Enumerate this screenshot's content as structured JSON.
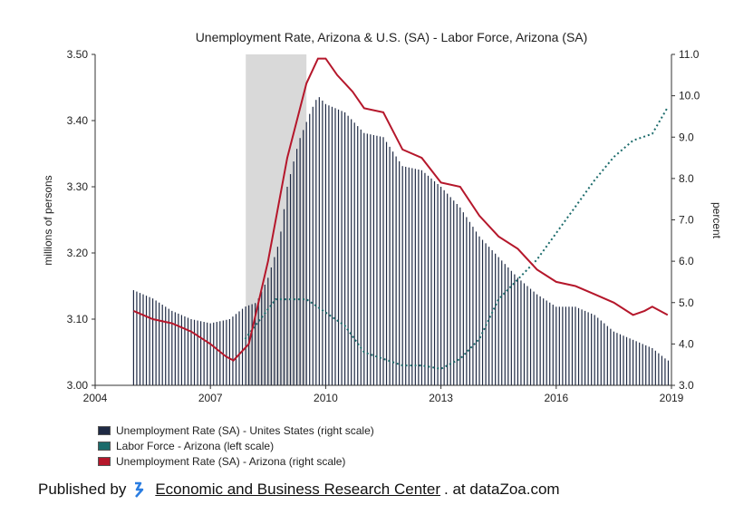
{
  "chart_data": {
    "type": "bar+line",
    "title": "Unemployment Rate, Arizona & U.S. (SA) - Labor Force, Arizona (SA)",
    "ylabel_left": "millions of persons",
    "ylabel_right": "percent",
    "ylim_left": [
      3.0,
      3.5
    ],
    "ylim_right": [
      3.0,
      11.0
    ],
    "xlim": [
      2004,
      2019
    ],
    "x_ticks": [
      "2004",
      "2007",
      "2010",
      "2013",
      "2016",
      "2019"
    ],
    "y_left_ticks": [
      "3.00",
      "3.10",
      "3.20",
      "3.30",
      "3.40",
      "3.50"
    ],
    "y_right_ticks": [
      "3.0",
      "4.0",
      "5.0",
      "6.0",
      "7.0",
      "8.0",
      "9.0",
      "10.0",
      "11.0"
    ],
    "recession": [
      2007.92,
      2009.5
    ],
    "colors": {
      "us_bars": "#1f2a44",
      "labor_force": "#1b6b6b",
      "az_unemployment": "#b5172b",
      "recession": "#d9d9d9"
    },
    "series": [
      {
        "name": "Unemployment Rate (SA) - Unites States (right scale)",
        "type": "bar",
        "x": [
          2005.0,
          2005.5,
          2006.0,
          2006.5,
          2007.0,
          2007.5,
          2007.9,
          2008.2,
          2008.5,
          2008.8,
          2009.0,
          2009.3,
          2009.6,
          2009.8,
          2010.0,
          2010.5,
          2011.0,
          2011.5,
          2012.0,
          2012.5,
          2013.0,
          2013.5,
          2014.0,
          2014.5,
          2015.0,
          2015.5,
          2016.0,
          2016.5,
          2017.0,
          2017.5,
          2018.0,
          2018.5,
          2018.9
        ],
        "y": [
          5.3,
          5.1,
          4.8,
          4.6,
          4.5,
          4.6,
          4.9,
          5.0,
          5.6,
          6.5,
          7.8,
          8.9,
          9.6,
          10.0,
          9.8,
          9.6,
          9.1,
          9.0,
          8.3,
          8.2,
          7.8,
          7.3,
          6.6,
          6.1,
          5.6,
          5.2,
          4.9,
          4.9,
          4.7,
          4.3,
          4.1,
          3.9,
          3.6
        ]
      },
      {
        "name": "Labor Force - Arizona (left scale)",
        "type": "line",
        "x": [
          2007.9,
          2008.3,
          2008.7,
          2009.0,
          2009.5,
          2010.0,
          2010.5,
          2011.0,
          2011.5,
          2012.0,
          2012.5,
          2013.0,
          2013.5,
          2014.0,
          2014.5,
          2015.0,
          2015.5,
          2016.0,
          2016.5,
          2017.0,
          2017.5,
          2018.0,
          2018.5,
          2018.9
        ],
        "y": [
          3.07,
          3.1,
          3.13,
          3.13,
          3.13,
          3.11,
          3.09,
          3.05,
          3.04,
          3.03,
          3.03,
          3.025,
          3.04,
          3.07,
          3.13,
          3.16,
          3.19,
          3.23,
          3.27,
          3.31,
          3.345,
          3.37,
          3.38,
          3.42
        ]
      },
      {
        "name": "Unemployment Rate (SA) - Arizona (right scale)",
        "type": "line",
        "x": [
          2005.0,
          2005.5,
          2006.0,
          2006.5,
          2007.0,
          2007.4,
          2007.6,
          2008.0,
          2008.5,
          2009.0,
          2009.5,
          2009.8,
          2010.0,
          2010.3,
          2010.7,
          2011.0,
          2011.5,
          2012.0,
          2012.5,
          2013.0,
          2013.5,
          2014.0,
          2014.5,
          2015.0,
          2015.5,
          2016.0,
          2016.5,
          2017.0,
          2017.5,
          2018.0,
          2018.3,
          2018.5,
          2018.9
        ],
        "y": [
          4.8,
          4.6,
          4.5,
          4.3,
          4.0,
          3.7,
          3.6,
          4.0,
          6.0,
          8.5,
          10.3,
          10.9,
          10.9,
          10.5,
          10.1,
          9.7,
          9.6,
          8.7,
          8.5,
          7.9,
          7.8,
          7.1,
          6.6,
          6.3,
          5.8,
          5.5,
          5.4,
          5.2,
          5.0,
          4.7,
          4.8,
          4.9,
          4.7
        ]
      }
    ]
  },
  "footer": {
    "published_by": "Published by",
    "link": "Economic and Business Research Center",
    "suffix": ". at dataZoa.com"
  }
}
